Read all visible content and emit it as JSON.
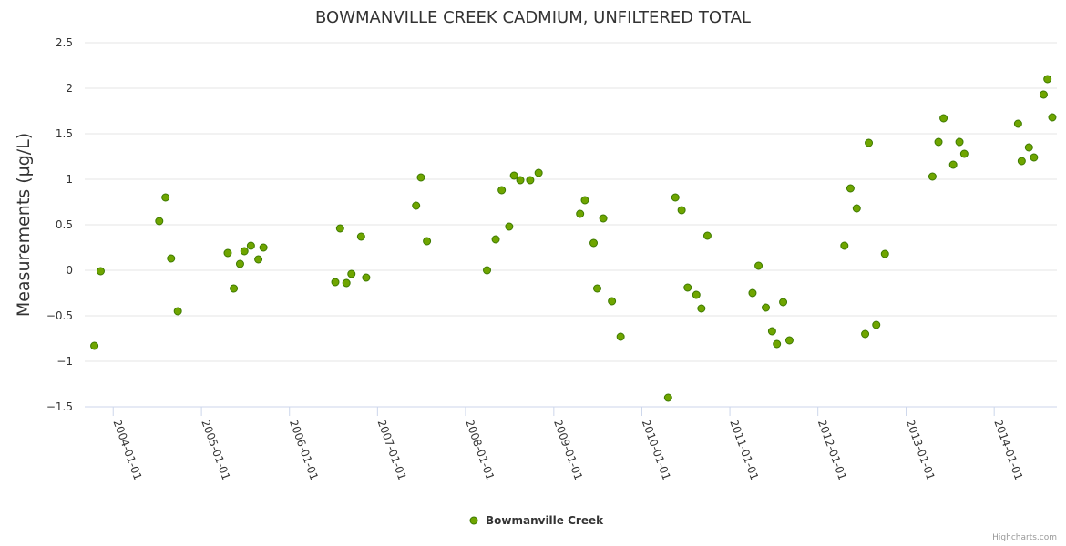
{
  "chart_data": {
    "type": "scatter",
    "title": "BOWMANVILLE CREEK CADMIUM, UNFILTERED TOTAL",
    "xlabel": "",
    "ylabel": "Measurements (µg/L)",
    "x_axis_type": "datetime",
    "x_tick_labels": [
      "2004-01-01",
      "2005-01-01",
      "2006-01-01",
      "2007-01-01",
      "2008-01-01",
      "2009-01-01",
      "2010-01-01",
      "2011-01-01",
      "2012-01-01",
      "2013-01-01",
      "2014-01-01"
    ],
    "y_ticks": [
      2.5,
      2,
      1.5,
      1,
      0.5,
      0,
      -0.5,
      -1,
      -1.5
    ],
    "y_tick_labels": [
      "2.5",
      "2",
      "1.5",
      "1",
      "0.5",
      "0",
      "−0.5",
      "−1",
      "−1.5"
    ],
    "ylim": [
      -1.5,
      2.5
    ],
    "xlim": [
      "2003-09-05",
      "2014-09-18"
    ],
    "grid": "y",
    "legend_position": "bottom-center",
    "series": [
      {
        "name": "Bowmanville Creek",
        "color": "#6fa500",
        "points": [
          {
            "x": "2003-10-15",
            "y": -0.83
          },
          {
            "x": "2003-11-10",
            "y": -0.01
          },
          {
            "x": "2004-07-10",
            "y": 0.54
          },
          {
            "x": "2004-08-05",
            "y": 0.8
          },
          {
            "x": "2004-08-28",
            "y": 0.13
          },
          {
            "x": "2004-09-25",
            "y": -0.45
          },
          {
            "x": "2005-04-20",
            "y": 0.19
          },
          {
            "x": "2005-05-15",
            "y": -0.2
          },
          {
            "x": "2005-06-10",
            "y": 0.07
          },
          {
            "x": "2005-06-28",
            "y": 0.21
          },
          {
            "x": "2005-07-25",
            "y": 0.27
          },
          {
            "x": "2005-08-25",
            "y": 0.12
          },
          {
            "x": "2005-09-15",
            "y": 0.25
          },
          {
            "x": "2006-07-10",
            "y": -0.13
          },
          {
            "x": "2006-07-30",
            "y": 0.46
          },
          {
            "x": "2006-08-25",
            "y": -0.14
          },
          {
            "x": "2006-09-15",
            "y": -0.04
          },
          {
            "x": "2006-10-25",
            "y": 0.37
          },
          {
            "x": "2006-11-15",
            "y": -0.08
          },
          {
            "x": "2007-06-10",
            "y": 0.71
          },
          {
            "x": "2007-06-30",
            "y": 1.02
          },
          {
            "x": "2007-07-25",
            "y": 0.32
          },
          {
            "x": "2008-03-30",
            "y": 0.0
          },
          {
            "x": "2008-05-05",
            "y": 0.34
          },
          {
            "x": "2008-05-30",
            "y": 0.88
          },
          {
            "x": "2008-06-30",
            "y": 0.48
          },
          {
            "x": "2008-07-20",
            "y": 1.04
          },
          {
            "x": "2008-08-15",
            "y": 0.99
          },
          {
            "x": "2008-09-25",
            "y": 0.99
          },
          {
            "x": "2008-10-30",
            "y": 1.07
          },
          {
            "x": "2009-04-20",
            "y": 0.62
          },
          {
            "x": "2009-05-10",
            "y": 0.77
          },
          {
            "x": "2009-06-15",
            "y": 0.3
          },
          {
            "x": "2009-06-30",
            "y": -0.2
          },
          {
            "x": "2009-07-25",
            "y": 0.57
          },
          {
            "x": "2009-08-30",
            "y": -0.34
          },
          {
            "x": "2009-10-05",
            "y": -0.73
          },
          {
            "x": "2010-04-20",
            "y": -1.4
          },
          {
            "x": "2010-05-20",
            "y": 0.8
          },
          {
            "x": "2010-06-15",
            "y": 0.66
          },
          {
            "x": "2010-07-10",
            "y": -0.19
          },
          {
            "x": "2010-08-15",
            "y": -0.27
          },
          {
            "x": "2010-09-05",
            "y": -0.42
          },
          {
            "x": "2010-09-30",
            "y": 0.38
          },
          {
            "x": "2011-04-05",
            "y": -0.25
          },
          {
            "x": "2011-04-30",
            "y": 0.05
          },
          {
            "x": "2011-05-30",
            "y": -0.41
          },
          {
            "x": "2011-06-25",
            "y": -0.67
          },
          {
            "x": "2011-07-15",
            "y": -0.81
          },
          {
            "x": "2011-08-10",
            "y": -0.35
          },
          {
            "x": "2011-09-05",
            "y": -0.77
          },
          {
            "x": "2012-04-20",
            "y": 0.27
          },
          {
            "x": "2012-05-15",
            "y": 0.9
          },
          {
            "x": "2012-06-10",
            "y": 0.68
          },
          {
            "x": "2012-07-15",
            "y": -0.7
          },
          {
            "x": "2012-07-30",
            "y": 1.4
          },
          {
            "x": "2012-08-30",
            "y": -0.6
          },
          {
            "x": "2012-10-05",
            "y": 0.18
          },
          {
            "x": "2013-04-20",
            "y": 1.03
          },
          {
            "x": "2013-05-15",
            "y": 1.41
          },
          {
            "x": "2013-06-05",
            "y": 1.67
          },
          {
            "x": "2013-07-15",
            "y": 1.16
          },
          {
            "x": "2013-08-10",
            "y": 1.41
          },
          {
            "x": "2013-08-30",
            "y": 1.28
          },
          {
            "x": "2014-04-10",
            "y": 1.61
          },
          {
            "x": "2014-04-25",
            "y": 1.2
          },
          {
            "x": "2014-05-25",
            "y": 1.35
          },
          {
            "x": "2014-06-15",
            "y": 1.24
          },
          {
            "x": "2014-07-25",
            "y": 1.93
          },
          {
            "x": "2014-08-10",
            "y": 2.1
          },
          {
            "x": "2014-08-30",
            "y": 1.68
          }
        ]
      }
    ]
  },
  "legend": {
    "label": "Bowmanville Creek"
  },
  "credits": {
    "text": "Highcharts.com"
  }
}
